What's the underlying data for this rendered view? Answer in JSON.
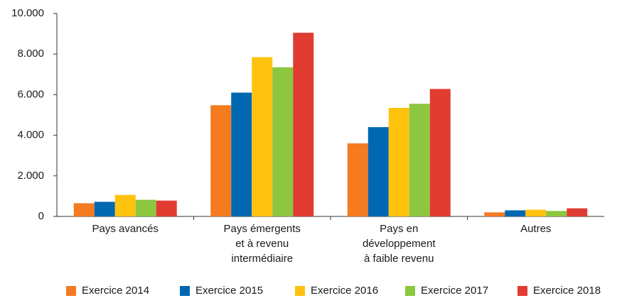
{
  "chart_data": {
    "type": "bar",
    "categories": [
      [
        "Pays avancés"
      ],
      [
        "Pays émergents",
        "et à revenu",
        "intermédiaire"
      ],
      [
        "Pays en",
        "développement",
        "à faible revenu"
      ],
      [
        "Autres"
      ]
    ],
    "series": [
      {
        "name": "Exercice 2014",
        "color": "#f47b20",
        "values": [
          650,
          5480,
          3600,
          200
        ]
      },
      {
        "name": "Exercice 2015",
        "color": "#0067b1",
        "values": [
          720,
          6100,
          4400,
          300
        ]
      },
      {
        "name": "Exercice 2016",
        "color": "#ffc20e",
        "values": [
          1060,
          7850,
          5350,
          330
        ]
      },
      {
        "name": "Exercice 2017",
        "color": "#8dc63f",
        "values": [
          820,
          7350,
          5550,
          270
        ]
      },
      {
        "name": "Exercice 2018",
        "color": "#e03c31",
        "values": [
          780,
          9050,
          6280,
          400
        ]
      }
    ],
    "ylim": [
      0,
      10000
    ],
    "yticks": [
      0,
      {
        "value": 2000,
        "label": "2.000"
      },
      {
        "value": 4000,
        "label": "4.000"
      },
      {
        "value": 6000,
        "label": "6.000"
      },
      {
        "value": 8000,
        "label": "8.000"
      },
      {
        "value": 10000,
        "label": "10.000"
      }
    ],
    "grid": false,
    "legend": "bottom"
  }
}
